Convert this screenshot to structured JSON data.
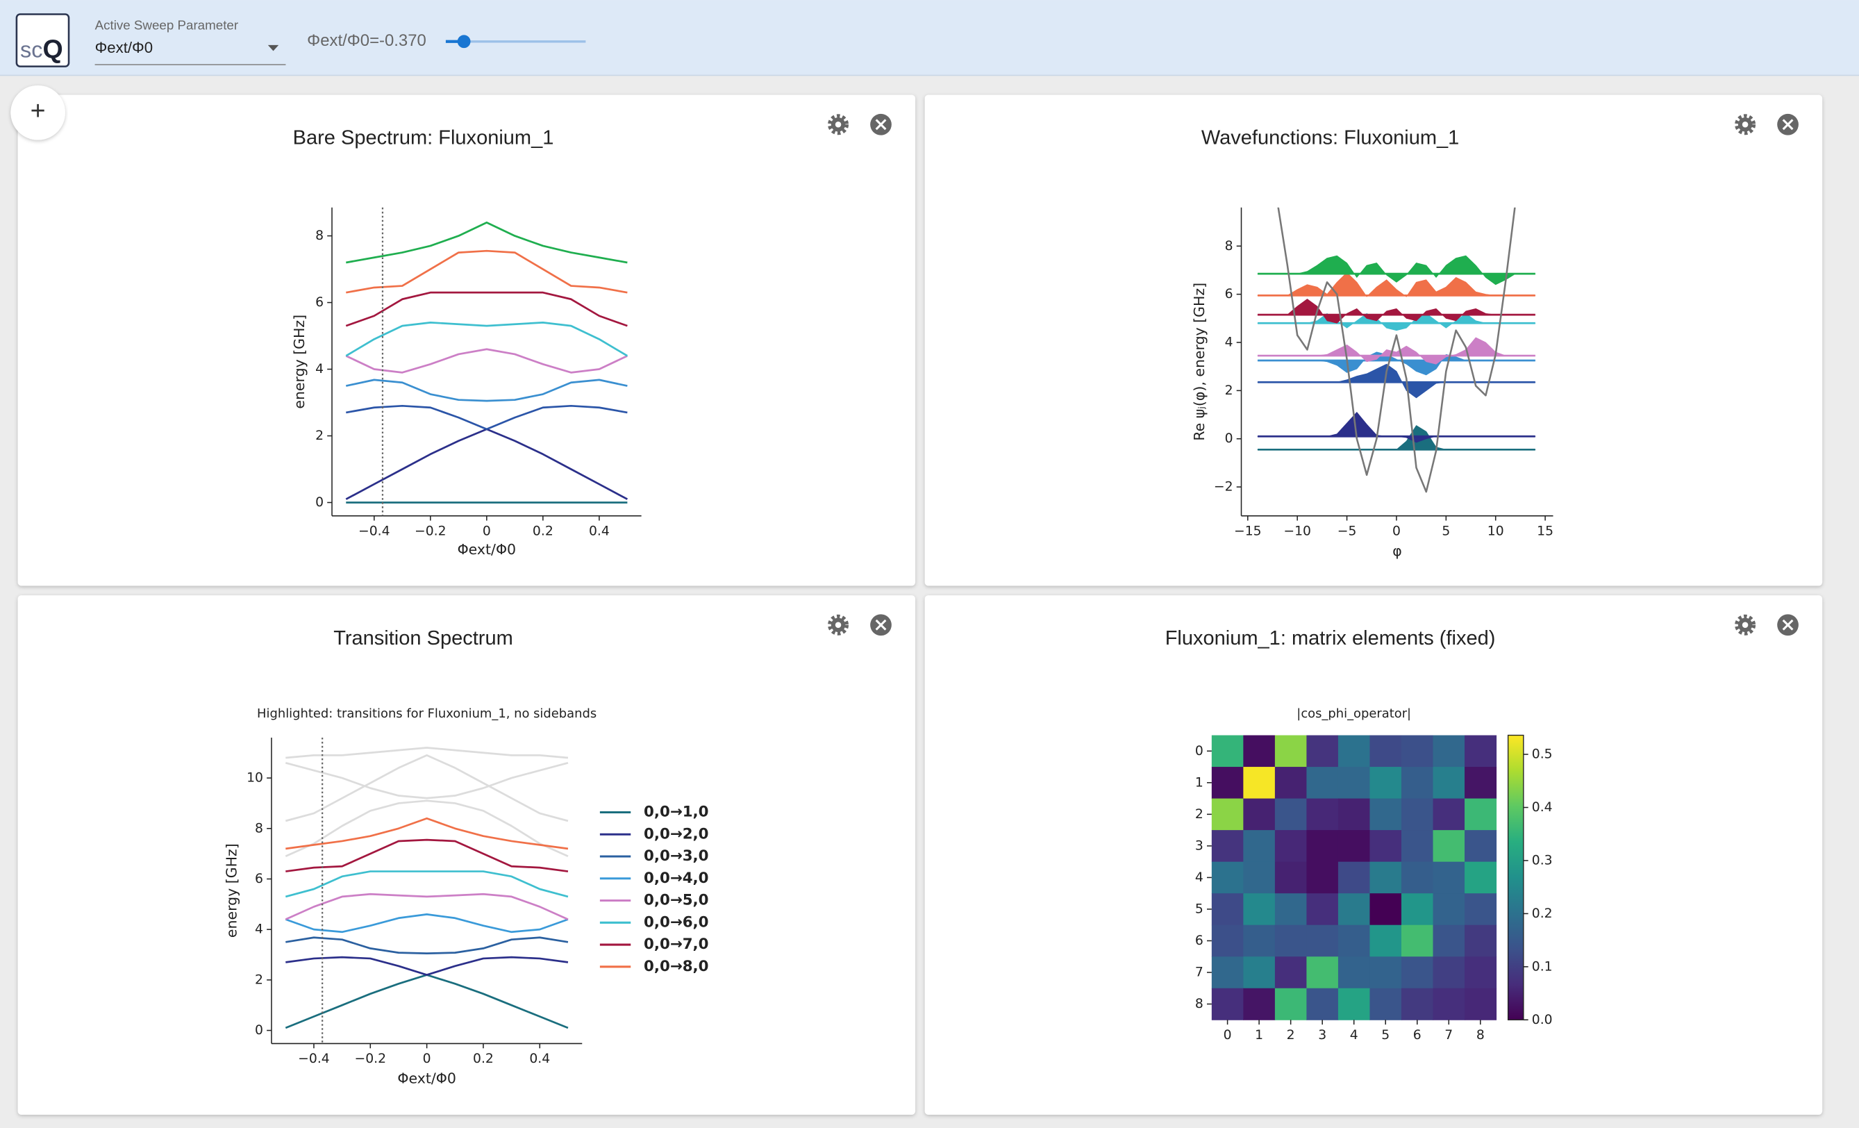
{
  "header": {
    "logo_sc": "sc",
    "logo_q": "Q",
    "sweep_label": "Active Sweep Parameter",
    "sweep_value": "Φext/Φ0",
    "slider_label": "Φext/Φ0=-0.370",
    "slider": {
      "value": -0.37
    }
  },
  "add_button": "+",
  "panels": [
    {
      "title": "Bare Spectrum: Fluxonium_1",
      "chart": {
        "type": "line",
        "x": [
          -0.5,
          -0.4,
          -0.3,
          -0.2,
          -0.1,
          0,
          0.1,
          0.2,
          0.3,
          0.4,
          0.5
        ],
        "xlim": [
          -0.55,
          0.55
        ],
        "ylim": [
          -0.4,
          8.85
        ],
        "xticks": [
          {
            "value": -0.4,
            "label": "−0.4"
          },
          {
            "value": -0.2,
            "label": "−0.2"
          },
          0,
          0.2,
          0.4
        ],
        "yticks": [
          0,
          2,
          4,
          6,
          8
        ],
        "xlabel": "Φext/Φ0",
        "ylabel": "energy [GHz]",
        "marker_line": true,
        "series": [
          {
            "color": "#1a6e7e",
            "values": [
              0,
              0,
              0,
              0,
              0,
              0,
              0,
              0,
              0,
              0,
              0
            ]
          },
          {
            "color": "#2b2f8a",
            "values": [
              0.1,
              0.55,
              1.0,
              1.45,
              1.85,
              2.2,
              1.85,
              1.45,
              1.0,
              0.55,
              0.1
            ]
          },
          {
            "color": "#2b55a8",
            "values": [
              2.7,
              2.85,
              2.9,
              2.85,
              2.55,
              2.2,
              2.55,
              2.85,
              2.9,
              2.85,
              2.7
            ]
          },
          {
            "color": "#3a8fd0",
            "values": [
              3.5,
              3.68,
              3.6,
              3.25,
              3.08,
              3.05,
              3.08,
              3.25,
              3.6,
              3.68,
              3.5
            ]
          },
          {
            "color": "#cc7fc6",
            "values": [
              4.4,
              4.0,
              3.9,
              4.15,
              4.45,
              4.6,
              4.45,
              4.15,
              3.9,
              4.0,
              4.4
            ]
          },
          {
            "color": "#3ebfcf",
            "values": [
              4.4,
              4.9,
              5.3,
              5.4,
              5.35,
              5.3,
              5.35,
              5.4,
              5.3,
              4.9,
              4.4
            ]
          },
          {
            "color": "#a3173f",
            "values": [
              5.3,
              5.6,
              6.1,
              6.3,
              6.3,
              6.3,
              6.3,
              6.3,
              6.1,
              5.6,
              5.3
            ]
          },
          {
            "color": "#f07048",
            "values": [
              6.3,
              6.45,
              6.5,
              7.0,
              7.5,
              7.55,
              7.5,
              7.0,
              6.5,
              6.45,
              6.3
            ]
          },
          {
            "color": "#1fae4f",
            "values": [
              7.2,
              7.35,
              7.5,
              7.7,
              8.0,
              8.4,
              8.0,
              7.7,
              7.5,
              7.35,
              7.2
            ]
          }
        ]
      }
    },
    {
      "title": "Wavefunctions: Fluxonium_1",
      "chart": {
        "type": "area",
        "x": [
          -14,
          -13,
          -12,
          -11,
          -10,
          -9,
          -8,
          -7,
          -6,
          -5,
          -4,
          -3,
          -2,
          -1,
          0,
          1,
          2,
          3,
          4,
          5,
          6,
          7,
          8,
          9,
          10,
          11,
          12,
          13,
          14
        ],
        "xlim": [
          -15.65,
          15.8
        ],
        "ylim": [
          -3.2,
          9.6
        ],
        "xticks": [
          {
            "value": -15,
            "label": "−15"
          },
          {
            "value": -10,
            "label": "−10"
          },
          {
            "value": -5,
            "label": "−5"
          },
          0,
          5,
          10,
          15
        ],
        "yticks": [
          {
            "value": -2,
            "label": "−2"
          },
          0,
          2,
          4,
          6,
          8
        ],
        "xlabel": "φ",
        "ylabel": "Re ψⱼ(φ),  energy [GHz]",
        "curve": {
          "color": "#777777",
          "x": [
            -12,
            -11,
            -10,
            -9,
            -8,
            -7,
            -6,
            -5,
            -4,
            -3,
            -2,
            -1,
            0,
            1,
            2,
            3,
            4,
            5,
            6,
            7,
            8,
            9,
            10,
            11,
            12
          ],
          "values": [
            9.8,
            7.2,
            4.3,
            3.7,
            5.3,
            6.5,
            6.0,
            3.3,
            0.0,
            -1.5,
            0.0,
            2.8,
            4.3,
            2.5,
            -1.2,
            -2.2,
            -0.5,
            2.8,
            4.5,
            3.8,
            2.2,
            1.8,
            3.5,
            6.5,
            9.8
          ]
        },
        "series": [
          {
            "color": "#1a6e7e",
            "offset": -0.45,
            "values": [
              -0.45,
              -0.45,
              -0.45,
              -0.45,
              -0.45,
              -0.45,
              -0.45,
              -0.45,
              -0.45,
              -0.45,
              -0.45,
              -0.45,
              -0.45,
              -0.45,
              -0.45,
              -0.1,
              0.55,
              0.3,
              -0.35,
              -0.45,
              -0.45,
              -0.45,
              -0.45,
              -0.45,
              -0.45,
              -0.45,
              -0.45,
              -0.45,
              -0.45
            ]
          },
          {
            "color": "#2b2f8a",
            "offset": 0.1,
            "values": [
              0.1,
              0.1,
              0.1,
              0.1,
              0.1,
              0.1,
              0.1,
              0.1,
              0.2,
              0.65,
              1.1,
              0.6,
              0.15,
              0.1,
              0.1,
              0.05,
              -0.15,
              0.0,
              0.1,
              0.1,
              0.1,
              0.1,
              0.1,
              0.1,
              0.1,
              0.1,
              0.1,
              0.1,
              0.1
            ]
          },
          {
            "color": "#2b55a8",
            "offset": 2.35,
            "values": [
              2.35,
              2.35,
              2.35,
              2.35,
              2.35,
              2.35,
              2.35,
              2.35,
              2.35,
              2.45,
              2.6,
              2.7,
              2.9,
              3.1,
              2.8,
              2.0,
              1.7,
              2.0,
              2.3,
              2.35,
              2.35,
              2.35,
              2.35,
              2.35,
              2.35,
              2.35,
              2.35,
              2.35,
              2.35
            ]
          },
          {
            "color": "#3a8fd0",
            "offset": 3.25,
            "values": [
              3.25,
              3.25,
              3.25,
              3.25,
              3.25,
              3.25,
              3.25,
              3.2,
              3.05,
              2.75,
              2.9,
              3.4,
              3.6,
              3.5,
              3.3,
              3.1,
              2.8,
              2.65,
              2.9,
              3.5,
              3.4,
              3.25,
              3.25,
              3.25,
              3.25,
              3.25,
              3.25,
              3.25,
              3.25
            ]
          },
          {
            "color": "#cc7fc6",
            "offset": 3.45,
            "values": [
              3.45,
              3.45,
              3.45,
              3.45,
              3.45,
              3.45,
              3.45,
              3.5,
              3.7,
              3.9,
              3.6,
              3.2,
              3.3,
              3.7,
              3.6,
              3.85,
              3.6,
              3.2,
              3.1,
              3.4,
              3.5,
              3.7,
              4.2,
              4.0,
              3.6,
              3.45,
              3.45,
              3.45,
              3.45
            ]
          },
          {
            "color": "#3ebfcf",
            "offset": 4.8,
            "values": [
              4.8,
              4.8,
              4.8,
              4.8,
              4.8,
              4.8,
              4.9,
              5.2,
              4.9,
              4.6,
              4.9,
              5.2,
              5.0,
              4.6,
              4.5,
              4.6,
              5.0,
              5.2,
              4.9,
              4.6,
              4.9,
              5.2,
              4.9,
              4.8,
              4.8,
              4.8,
              4.8,
              4.8,
              4.8
            ]
          },
          {
            "color": "#a3173f",
            "offset": 5.15,
            "values": [
              5.15,
              5.15,
              5.15,
              5.15,
              5.5,
              5.8,
              5.5,
              4.9,
              4.8,
              5.2,
              5.4,
              5.0,
              4.9,
              5.3,
              5.4,
              5.0,
              4.9,
              5.3,
              5.4,
              5.0,
              4.9,
              5.3,
              5.4,
              5.2,
              5.15,
              5.15,
              5.15,
              5.15,
              5.15
            ]
          },
          {
            "color": "#f07048",
            "offset": 5.95,
            "values": [
              5.95,
              5.95,
              5.95,
              5.95,
              6.2,
              6.4,
              6.3,
              6.0,
              6.5,
              6.9,
              6.5,
              5.9,
              6.3,
              6.6,
              6.2,
              5.9,
              6.5,
              6.6,
              6.1,
              6.3,
              6.7,
              6.5,
              6.1,
              6.0,
              5.95,
              5.95,
              5.95,
              5.95,
              5.95
            ]
          },
          {
            "color": "#1fae4f",
            "offset": 6.85,
            "values": [
              6.85,
              6.85,
              6.85,
              6.85,
              6.85,
              6.95,
              7.2,
              7.5,
              7.6,
              7.3,
              6.7,
              7.2,
              7.3,
              6.8,
              6.5,
              6.8,
              7.3,
              7.2,
              6.7,
              7.2,
              7.5,
              7.6,
              7.2,
              6.7,
              6.4,
              6.6,
              6.85,
              6.85,
              6.85
            ]
          }
        ]
      }
    },
    {
      "title": "Transition Spectrum",
      "chart": {
        "type": "line",
        "subtitle": "Highlighted: transitions for Fluxonium_1, no sidebands",
        "x": [
          -0.5,
          -0.4,
          -0.3,
          -0.2,
          -0.1,
          0,
          0.1,
          0.2,
          0.3,
          0.4,
          0.5
        ],
        "xlim": [
          -0.55,
          0.55
        ],
        "ylim": [
          -0.52,
          11.6
        ],
        "xticks": [
          {
            "value": -0.4,
            "label": "−0.4"
          },
          {
            "value": -0.2,
            "label": "−0.2"
          },
          0,
          0.2,
          0.4
        ],
        "yticks": [
          0,
          2,
          4,
          6,
          8,
          10
        ],
        "xlabel": "Φext/Φ0",
        "ylabel": "energy [GHz]",
        "marker_line": true,
        "legend": "right",
        "series": [
          {
            "color": "#dcdcdc",
            "values": [
              8.3,
              8.6,
              9.2,
              9.8,
              10.4,
              10.9,
              10.4,
              9.8,
              9.2,
              8.6,
              8.3
            ]
          },
          {
            "color": "#dcdcdc",
            "values": [
              10.6,
              10.3,
              10.0,
              9.6,
              9.3,
              9.2,
              9.3,
              9.6,
              10.0,
              10.3,
              10.6
            ]
          },
          {
            "color": "#dcdcdc",
            "values": [
              6.9,
              7.4,
              8.1,
              8.7,
              9.0,
              9.1,
              9.0,
              8.7,
              8.1,
              7.4,
              6.9
            ]
          },
          {
            "color": "#dcdcdc",
            "values": [
              10.8,
              10.9,
              10.9,
              11.0,
              11.1,
              11.2,
              11.1,
              11.0,
              10.9,
              10.9,
              10.8
            ]
          },
          {
            "name": "0,0→1,0",
            "color": "#1a6e7e",
            "values": [
              0.1,
              0.55,
              1.0,
              1.45,
              1.85,
              2.2,
              1.85,
              1.45,
              1.0,
              0.55,
              0.1
            ]
          },
          {
            "name": "0,0→2,0",
            "color": "#2b2f8a",
            "values": [
              2.7,
              2.85,
              2.9,
              2.85,
              2.55,
              2.2,
              2.55,
              2.85,
              2.9,
              2.85,
              2.7
            ]
          },
          {
            "name": "0,0→3,0",
            "color": "#2b60a0",
            "values": [
              3.5,
              3.68,
              3.6,
              3.25,
              3.08,
              3.05,
              3.08,
              3.25,
              3.6,
              3.68,
              3.5
            ]
          },
          {
            "name": "0,0→4,0",
            "color": "#3a9ad9",
            "values": [
              4.4,
              4.0,
              3.9,
              4.15,
              4.45,
              4.6,
              4.45,
              4.15,
              3.9,
              4.0,
              4.4
            ]
          },
          {
            "name": "0,0→5,0",
            "color": "#cc7fc6",
            "values": [
              4.4,
              4.9,
              5.3,
              5.4,
              5.35,
              5.3,
              5.35,
              5.4,
              5.3,
              4.9,
              4.4
            ]
          },
          {
            "name": "0,0→6,0",
            "color": "#3ebfcf",
            "values": [
              5.3,
              5.6,
              6.1,
              6.3,
              6.3,
              6.3,
              6.3,
              6.3,
              6.1,
              5.6,
              5.3
            ]
          },
          {
            "name": "0,0→7,0",
            "color": "#a3173f",
            "values": [
              6.3,
              6.45,
              6.5,
              7.0,
              7.5,
              7.55,
              7.5,
              7.0,
              6.5,
              6.45,
              6.3
            ]
          },
          {
            "name": "0,0→8,0",
            "color": "#f07048",
            "values": [
              7.2,
              7.35,
              7.5,
              7.7,
              8.0,
              8.4,
              8.0,
              7.7,
              7.5,
              7.35,
              7.2
            ]
          }
        ]
      }
    },
    {
      "title": "Fluxonium_1: matrix elements (fixed)",
      "chart": {
        "type": "heatmap",
        "title": "|cos_phi_operator|",
        "colormap": "viridis",
        "xticks": [
          0,
          1,
          2,
          3,
          4,
          5,
          6,
          7,
          8
        ],
        "yticks": [
          0,
          1,
          2,
          3,
          4,
          5,
          6,
          7,
          8
        ],
        "clim": [
          0,
          0.536
        ],
        "cticks": [
          {
            "value": 0,
            "label": "0.0"
          },
          0.1,
          0.2,
          0.3,
          0.4,
          0.5
        ],
        "values": [
          [
            0.35,
            0.02,
            0.44,
            0.08,
            0.2,
            0.12,
            0.13,
            0.18,
            0.07
          ],
          [
            0.02,
            0.53,
            0.05,
            0.18,
            0.18,
            0.25,
            0.16,
            0.23,
            0.03
          ],
          [
            0.44,
            0.05,
            0.14,
            0.06,
            0.05,
            0.18,
            0.14,
            0.07,
            0.36
          ],
          [
            0.08,
            0.18,
            0.06,
            0.02,
            0.02,
            0.07,
            0.14,
            0.37,
            0.14
          ],
          [
            0.2,
            0.18,
            0.05,
            0.02,
            0.12,
            0.22,
            0.16,
            0.17,
            0.31
          ],
          [
            0.12,
            0.25,
            0.18,
            0.07,
            0.22,
            0.0,
            0.28,
            0.17,
            0.14
          ],
          [
            0.13,
            0.16,
            0.14,
            0.14,
            0.16,
            0.28,
            0.37,
            0.14,
            0.09
          ],
          [
            0.18,
            0.23,
            0.07,
            0.37,
            0.17,
            0.17,
            0.14,
            0.1,
            0.07
          ],
          [
            0.07,
            0.03,
            0.36,
            0.14,
            0.31,
            0.14,
            0.09,
            0.07,
            0.06
          ]
        ]
      }
    }
  ]
}
